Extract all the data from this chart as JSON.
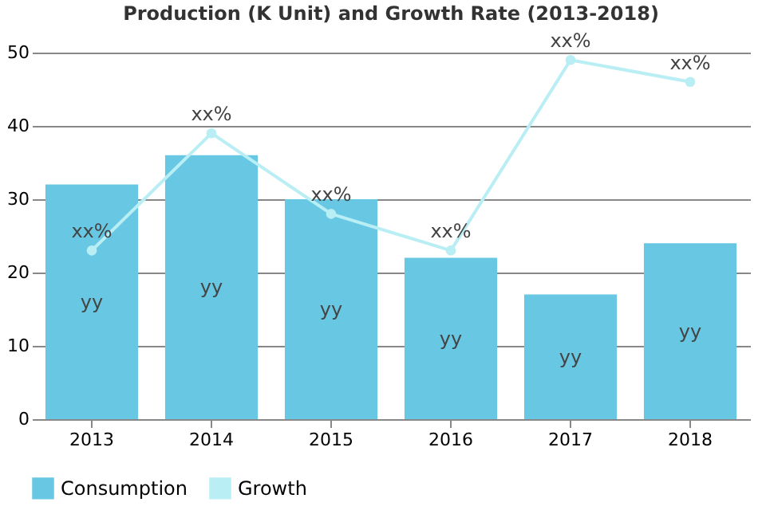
{
  "chart_data": {
    "type": "bar",
    "title": "Production (K Unit) and Growth Rate (2013-2018)",
    "categories": [
      "2013",
      "2014",
      "2015",
      "2016",
      "2017",
      "2018"
    ],
    "series": [
      {
        "name": "Consumption",
        "color": "#68c8e3",
        "values": [
          32,
          36,
          30,
          22,
          17,
          24
        ],
        "value_labels": [
          "yy",
          "yy",
          "yy",
          "yy",
          "yy",
          "yy"
        ]
      },
      {
        "name": "Growth",
        "type": "line",
        "color": "#b8eef4",
        "values": [
          23,
          39,
          28,
          23,
          49,
          46
        ],
        "value_labels": [
          "xx%",
          "xx%",
          "xx%",
          "xx%",
          "xx%",
          "xx%"
        ]
      }
    ],
    "ylim": [
      0,
      50
    ],
    "yticks": [
      0,
      10,
      20,
      30,
      40,
      50
    ],
    "grid": "y",
    "legend": "bottom",
    "marker": "circle"
  }
}
